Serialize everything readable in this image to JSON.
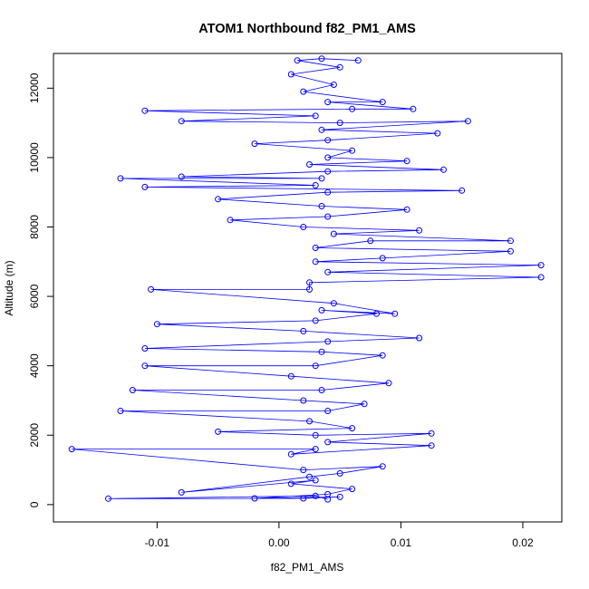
{
  "chart_data": {
    "type": "scatter",
    "title": "ATOM1 Northbound f82_PM1_AMS",
    "xlabel": "f82_PM1_AMS",
    "ylabel": "Altitude (m)",
    "xlim": [
      -0.0185,
      0.0232
    ],
    "ylim": [
      -500,
      13000
    ],
    "x_ticks": [
      -0.01,
      0.0,
      0.01,
      0.02
    ],
    "x_tick_labels": [
      "-0.01",
      "0.00",
      "0.01",
      "0.02"
    ],
    "y_ticks": [
      0,
      2000,
      4000,
      6000,
      8000,
      10000,
      12000
    ],
    "y_tick_labels": [
      "0",
      "2000",
      "4000",
      "6000",
      "8000",
      "10000",
      "12000"
    ],
    "grid": false,
    "legend": "none",
    "marker": "open-circle",
    "connected_with_lines": true,
    "series_color": "#0000ff",
    "series": [
      {
        "points": [
          [
            0.004,
            150
          ],
          [
            0.003,
            250
          ],
          [
            -0.014,
            170
          ],
          [
            0.002,
            180
          ],
          [
            0.005,
            220
          ],
          [
            -0.002,
            180
          ],
          [
            0.004,
            300
          ],
          [
            0.006,
            450
          ],
          [
            0.001,
            600
          ],
          [
            0.003,
            700
          ],
          [
            -0.008,
            350
          ],
          [
            0.0025,
            800
          ],
          [
            0.005,
            900
          ],
          [
            0.0085,
            1100
          ],
          [
            0.002,
            1000
          ],
          [
            -0.017,
            1600
          ],
          [
            0.003,
            1600
          ],
          [
            0.001,
            1450
          ],
          [
            0.0125,
            1700
          ],
          [
            0.004,
            1800
          ],
          [
            0.0125,
            2050
          ],
          [
            0.003,
            2000
          ],
          [
            -0.005,
            2100
          ],
          [
            0.006,
            2200
          ],
          [
            0.0025,
            2400
          ],
          [
            -0.013,
            2700
          ],
          [
            0.004,
            2700
          ],
          [
            0.007,
            2900
          ],
          [
            0.002,
            3000
          ],
          [
            -0.012,
            3300
          ],
          [
            0.0035,
            3300
          ],
          [
            0.009,
            3500
          ],
          [
            0.001,
            3700
          ],
          [
            -0.011,
            4000
          ],
          [
            0.003,
            4000
          ],
          [
            0.0085,
            4300
          ],
          [
            0.0035,
            4400
          ],
          [
            -0.011,
            4500
          ],
          [
            0.004,
            4700
          ],
          [
            0.0115,
            4800
          ],
          [
            0.002,
            5000
          ],
          [
            -0.01,
            5200
          ],
          [
            0.003,
            5300
          ],
          [
            0.008,
            5500
          ],
          [
            0.0035,
            5600
          ],
          [
            0.0095,
            5500
          ],
          [
            0.0045,
            5800
          ],
          [
            -0.0105,
            6200
          ],
          [
            0.0025,
            6200
          ],
          [
            0.0025,
            6400
          ],
          [
            0.0215,
            6550
          ],
          [
            0.004,
            6700
          ],
          [
            0.0215,
            6900
          ],
          [
            0.003,
            7000
          ],
          [
            0.0085,
            7100
          ],
          [
            0.019,
            7300
          ],
          [
            0.003,
            7400
          ],
          [
            0.0075,
            7600
          ],
          [
            0.019,
            7600
          ],
          [
            0.0045,
            7800
          ],
          [
            0.0115,
            7900
          ],
          [
            0.002,
            8000
          ],
          [
            -0.004,
            8200
          ],
          [
            0.004,
            8300
          ],
          [
            0.0105,
            8500
          ],
          [
            0.0035,
            8600
          ],
          [
            -0.005,
            8800
          ],
          [
            0.004,
            9000
          ],
          [
            0.015,
            9050
          ],
          [
            -0.011,
            9150
          ],
          [
            0.003,
            9200
          ],
          [
            -0.013,
            9400
          ],
          [
            0.0035,
            9400
          ],
          [
            -0.008,
            9450
          ],
          [
            0.004,
            9600
          ],
          [
            0.0135,
            9650
          ],
          [
            0.0025,
            9800
          ],
          [
            0.0105,
            9900
          ],
          [
            0.004,
            10000
          ],
          [
            0.006,
            10200
          ],
          [
            -0.002,
            10400
          ],
          [
            0.004,
            10500
          ],
          [
            0.013,
            10700
          ],
          [
            0.0035,
            10800
          ],
          [
            0.0155,
            11050
          ],
          [
            0.005,
            11000
          ],
          [
            -0.008,
            11050
          ],
          [
            0.003,
            11200
          ],
          [
            -0.011,
            11350
          ],
          [
            0.006,
            11400
          ],
          [
            0.011,
            11400
          ],
          [
            0.004,
            11600
          ],
          [
            0.0085,
            11600
          ],
          [
            0.002,
            11900
          ],
          [
            0.0045,
            12100
          ],
          [
            0.001,
            12400
          ],
          [
            0.005,
            12600
          ],
          [
            0.0015,
            12800
          ],
          [
            0.0035,
            12850
          ],
          [
            0.0065,
            12800
          ]
        ]
      }
    ]
  }
}
